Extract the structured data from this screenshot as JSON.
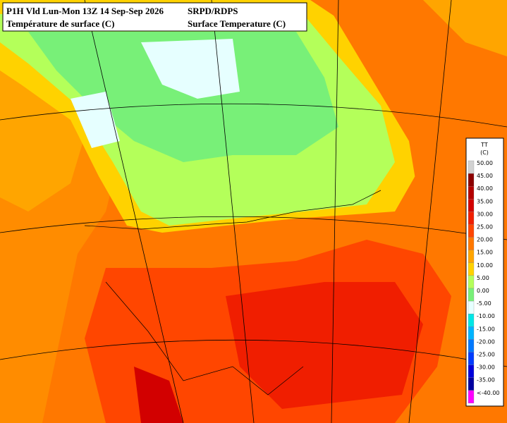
{
  "header": {
    "left_line1": "P1H Vld Lun-Mon 13Z 14 Sep-Sep 2026",
    "left_line2": "Température de surface (C)",
    "right_line1": "SRPD/RDPS",
    "right_line2": "Surface Temperature (C)"
  },
  "legend": {
    "title": "TT",
    "unit": "(C)",
    "items": [
      {
        "label": "50.00",
        "color": "#d2d2d2"
      },
      {
        "label": "45.00",
        "color": "#8c0000"
      },
      {
        "label": "40.00",
        "color": "#b40000"
      },
      {
        "label": "35.00",
        "color": "#d20000"
      },
      {
        "label": "30.00",
        "color": "#f01e00"
      },
      {
        "label": "25.00",
        "color": "#ff4600"
      },
      {
        "label": "20.00",
        "color": "#ff7800"
      },
      {
        "label": "15.00",
        "color": "#ffa500"
      },
      {
        "label": "10.00",
        "color": "#ffd200"
      },
      {
        "label": "5.00",
        "color": "#b4ff5a"
      },
      {
        "label": "0.00",
        "color": "#78f078"
      },
      {
        "label": "-5.00",
        "color": "#e6ffff"
      },
      {
        "label": "-10.00",
        "color": "#00e6e6"
      },
      {
        "label": "-15.00",
        "color": "#00b4ff"
      },
      {
        "label": "-20.00",
        "color": "#0078ff"
      },
      {
        "label": "-25.00",
        "color": "#003cff"
      },
      {
        "label": "-30.00",
        "color": "#0000dc"
      },
      {
        "label": "-35.00",
        "color": "#0000a0"
      },
      {
        "label": "<-40.00",
        "color": "#ff00ff"
      }
    ]
  }
}
